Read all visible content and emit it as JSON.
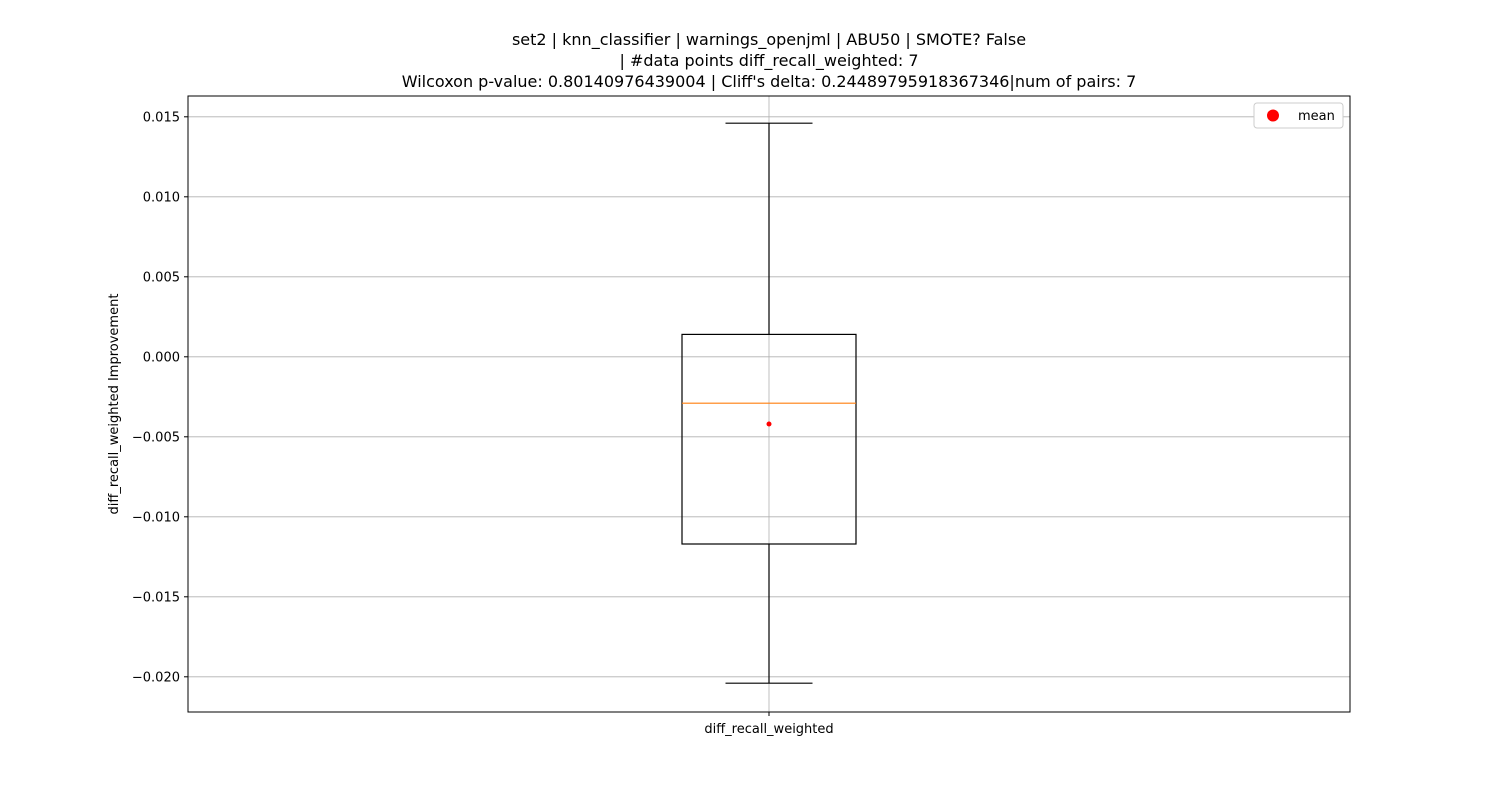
{
  "chart_data": {
    "type": "box",
    "title_lines": [
      "set2 | knn_classifier | warnings_openjml | ABU50 | SMOTE? False",
      "| #data points diff_recall_weighted: 7",
      "Wilcoxon p-value: 0.80140976439004 | Cliff's delta: 0.24489795918367346|num of pairs: 7"
    ],
    "xlabel": "",
    "ylabel": "diff_recall_weighted Improvement",
    "categories": [
      "diff_recall_weighted"
    ],
    "boxes": [
      {
        "name": "diff_recall_weighted",
        "whisker_low": -0.0204,
        "q1": -0.0117,
        "median": -0.0029,
        "q3": 0.0014,
        "whisker_high": 0.0146,
        "mean": -0.0042
      }
    ],
    "ylim": [
      -0.0222,
      0.0163
    ],
    "yticks": [
      -0.02,
      -0.015,
      -0.01,
      -0.005,
      0.0,
      0.005,
      0.01,
      0.015
    ],
    "ytick_labels": [
      "−0.020",
      "−0.015",
      "−0.010",
      "−0.005",
      "0.000",
      "0.005",
      "0.010",
      "0.015"
    ],
    "grid": true,
    "legend": {
      "position": "top-right",
      "entries": [
        {
          "label": "mean",
          "color": "#ff0000",
          "marker": "circle"
        }
      ]
    },
    "colors": {
      "box": "#000000",
      "median": "#ff7f0e",
      "mean": "#ff0000",
      "grid": "#b0b0b0"
    }
  }
}
